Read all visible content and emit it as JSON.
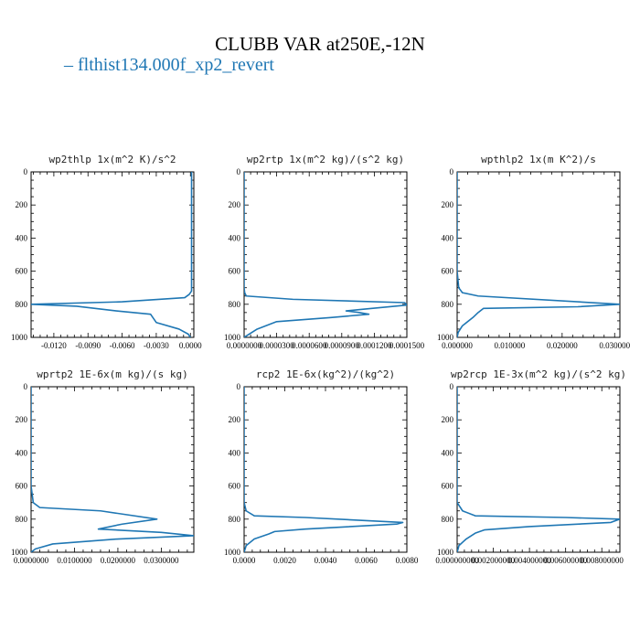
{
  "title": "CLUBB VAR at250E,-12N",
  "legend": {
    "label": "flthist134.000f_xp2_revert",
    "marker": "–",
    "color": "#1f77b4"
  },
  "chart_data": [
    {
      "type": "line",
      "title": "wp2thlp  1x(m^2 K)/s^2",
      "xlim": [
        -0.014,
        0.0003
      ],
      "ylim": [
        1000,
        0
      ],
      "xticks": [
        -0.012,
        -0.009,
        -0.006,
        -0.003,
        0.0
      ],
      "xtick_labels": [
        "-0.0120",
        "-0.0090",
        "-0.0060",
        "-0.0030",
        "0.0000"
      ],
      "yticks": [
        0,
        200,
        400,
        600,
        800,
        1000
      ],
      "series": [
        {
          "color": "#1f77b4",
          "x": [
            0.0001,
            0.0001,
            0.0001,
            0.0001,
            0.0001,
            0.0001,
            0.0001,
            0.0001,
            0.0001,
            -0.0001,
            -0.0005,
            -0.006,
            -0.014,
            -0.01,
            -0.0065,
            -0.0035,
            -0.0033,
            -0.003,
            -0.001,
            -0.0002,
            0.0
          ],
          "y": [
            0,
            100,
            200,
            300,
            400,
            500,
            600,
            700,
            720,
            740,
            760,
            785,
            800,
            812,
            840,
            860,
            880,
            910,
            950,
            980,
            1000
          ]
        }
      ]
    },
    {
      "type": "line",
      "title": "wp2rtp  1x(m^2 kg)/(s^2 kg)",
      "xlim": [
        0.0,
        0.00015
      ],
      "ylim": [
        1000,
        0
      ],
      "xticks": [
        0.0,
        3e-05,
        6e-05,
        9e-05,
        0.00012,
        0.00015
      ],
      "xtick_labels": [
        "0.0000000",
        "0.0000300",
        "0.0000600",
        "0.0000900",
        "0.0001200",
        "0.0001500"
      ],
      "yticks": [
        0,
        200,
        400,
        600,
        800,
        1000
      ],
      "series": [
        {
          "color": "#1f77b4",
          "x": [
            0.0,
            0.0,
            0.0,
            0.0,
            0.0,
            5e-07,
            2e-06,
            4.5e-05,
            0.000148,
            0.00015,
            0.00011,
            9.4e-05,
            0.000106,
            0.000115,
            8e-05,
            3e-05,
            1.2e-05,
            0.0
          ],
          "y": [
            0,
            200,
            400,
            600,
            700,
            730,
            750,
            770,
            790,
            805,
            830,
            840,
            850,
            860,
            880,
            905,
            950,
            1000
          ]
        }
      ]
    },
    {
      "type": "line",
      "title": "wpthlp2  1x(m K^2)/s",
      "xlim": [
        0.0,
        0.031
      ],
      "ylim": [
        1000,
        0
      ],
      "xticks": [
        0.0,
        0.01,
        0.02,
        0.03
      ],
      "xtick_labels": [
        "0.000000",
        "0.010000",
        "0.020000",
        "0.030000"
      ],
      "yticks": [
        0,
        200,
        400,
        600,
        800,
        1000
      ],
      "series": [
        {
          "color": "#1f77b4",
          "x": [
            0.0,
            0.0,
            0.0,
            0.0,
            0.0003,
            0.001,
            0.004,
            0.031,
            0.023,
            0.005,
            0.004,
            0.003,
            0.001,
            0.0002,
            0.0
          ],
          "y": [
            0,
            200,
            400,
            600,
            700,
            730,
            750,
            800,
            815,
            825,
            850,
            880,
            930,
            970,
            1000
          ]
        }
      ]
    },
    {
      "type": "line",
      "title": "wprtp2  1E-6x(m kg)/(s kg)",
      "xlim": [
        0.0,
        0.0375
      ],
      "ylim": [
        1000,
        0
      ],
      "xticks": [
        0.0,
        0.01,
        0.02,
        0.03
      ],
      "xtick_labels": [
        "0.0000000",
        "0.0100000",
        "0.0200000",
        "0.0300000"
      ],
      "yticks": [
        0,
        200,
        400,
        600,
        800,
        1000
      ],
      "series": [
        {
          "color": "#1f77b4",
          "x": [
            0.0,
            0.0,
            0.0,
            0.0,
            0.0005,
            0.002,
            0.016,
            0.029,
            0.021,
            0.0155,
            0.03,
            0.0375,
            0.02,
            0.005,
            0.001,
            0.0
          ],
          "y": [
            0,
            200,
            400,
            600,
            700,
            730,
            750,
            800,
            830,
            860,
            880,
            900,
            920,
            950,
            980,
            1000
          ]
        }
      ]
    },
    {
      "type": "line",
      "title": "rcp2  1E-6x(kg^2)/(kg^2)",
      "xlim": [
        0.0,
        0.008
      ],
      "ylim": [
        1000,
        0
      ],
      "xticks": [
        0.0,
        0.002,
        0.004,
        0.006,
        0.008
      ],
      "xtick_labels": [
        "0.0000",
        "0.0020",
        "0.0040",
        "0.0060",
        "0.0080"
      ],
      "yticks": [
        0,
        200,
        400,
        600,
        800,
        1000
      ],
      "series": [
        {
          "color": "#1f77b4",
          "x": [
            0.0,
            0.0,
            0.0,
            0.0,
            0.0,
            0.0001,
            0.0005,
            0.003,
            0.0078,
            0.0075,
            0.003,
            0.0015,
            0.0012,
            0.0005,
            0.0001,
            0.0
          ],
          "y": [
            0,
            200,
            400,
            600,
            700,
            750,
            780,
            790,
            820,
            830,
            860,
            875,
            890,
            920,
            960,
            1000
          ]
        }
      ]
    },
    {
      "type": "line",
      "title": "wp2rcp  1E-3x(m^2 kg)/(s^2 kg)",
      "xlim": [
        0.0,
        0.009
      ],
      "ylim": [
        1000,
        0
      ],
      "xticks": [
        0.0,
        0.002,
        0.004,
        0.006,
        0.008
      ],
      "xtick_labels": [
        "0.000000000",
        "0.002000000",
        "0.004000000",
        "0.006000000",
        "0.008000000"
      ],
      "yticks": [
        0,
        200,
        400,
        600,
        800,
        1000
      ],
      "series": [
        {
          "color": "#1f77b4",
          "x": [
            0.0,
            0.0,
            0.0,
            0.0,
            0.0,
            0.0003,
            0.001,
            0.006,
            0.009,
            0.0085,
            0.004,
            0.0015,
            0.001,
            0.0005,
            0.0001,
            0.0
          ],
          "y": [
            0,
            200,
            400,
            600,
            700,
            750,
            780,
            790,
            800,
            820,
            845,
            865,
            885,
            920,
            960,
            1000
          ]
        }
      ]
    }
  ]
}
